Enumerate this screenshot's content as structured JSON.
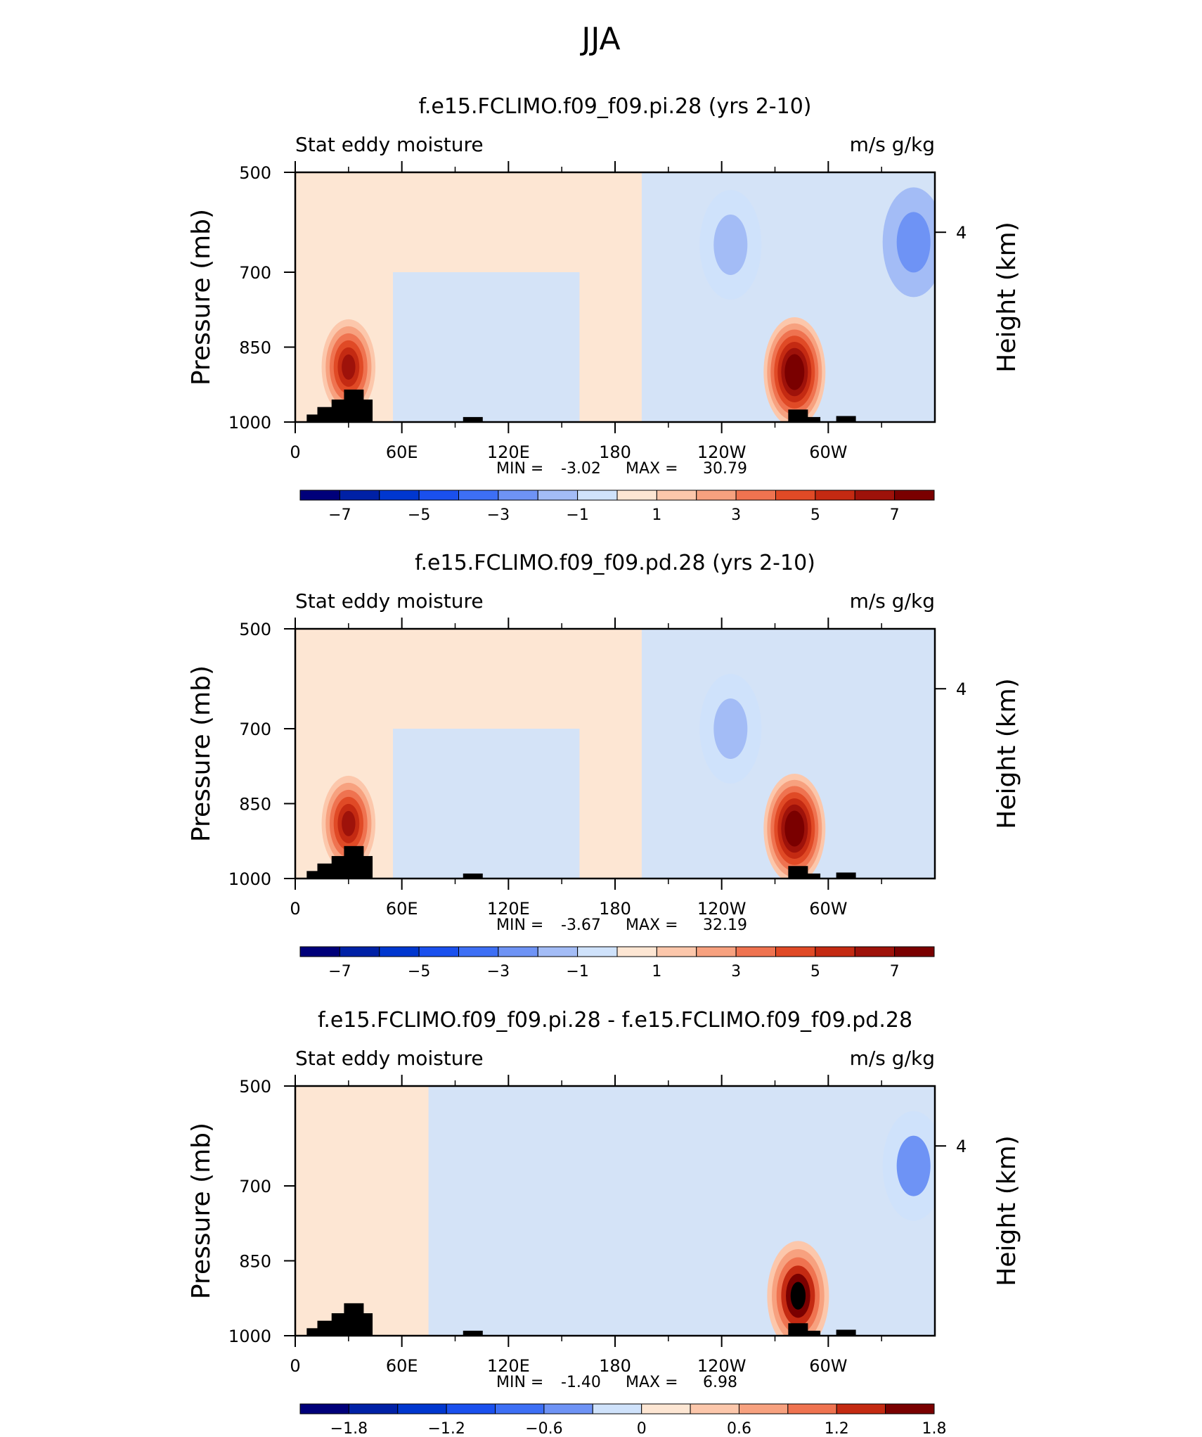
{
  "page_title": "JJA",
  "chart_data": [
    {
      "type": "heatmap",
      "title": "f.e15.FCLIMO.f09_f09.pi.28 (yrs 2-10)",
      "left_label": "Stat eddy moisture",
      "right_label": "m/s g/kg",
      "ylabel": "Pressure (mb)",
      "y2label": "Height (km)",
      "x_ticks": [
        {
          "lon": 0,
          "label": "0"
        },
        {
          "lon": 60,
          "label": "60E"
        },
        {
          "lon": 120,
          "label": "120E"
        },
        {
          "lon": 180,
          "label": "180"
        },
        {
          "lon": 240,
          "label": "120W"
        },
        {
          "lon": 300,
          "label": "60W"
        }
      ],
      "y_ticks": [
        {
          "p": 500,
          "label": "500"
        },
        {
          "p": 700,
          "label": "700"
        },
        {
          "p": 850,
          "label": "850"
        },
        {
          "p": 1000,
          "label": "1000"
        }
      ],
      "y2_ticks": [
        {
          "p": 620,
          "label": "4"
        }
      ],
      "xlim": [
        0,
        360
      ],
      "ylim": [
        1000,
        500
      ],
      "stats": {
        "min_label": "MIN =",
        "min": "-3.02",
        "max_label": "MAX =",
        "max": "30.79"
      },
      "colorbar": {
        "levels": [
          -7,
          -6,
          -5,
          -4,
          -3,
          -2,
          -1,
          0,
          1,
          2,
          3,
          4,
          5,
          6,
          7
        ],
        "labels": [
          "-7",
          "-5",
          "-3",
          "-1",
          "1",
          "3",
          "5",
          "7"
        ],
        "colors": [
          "#00007a",
          "#0021a6",
          "#0037cf",
          "#1a50ee",
          "#3d6ff5",
          "#6e93f5",
          "#a3bcf6",
          "#cfe2fb",
          "#fde6d3",
          "#fcc7ab",
          "#f7a17f",
          "#ef7350",
          "#e04a26",
          "#c42a12",
          "#9e120a",
          "#7a0000"
        ]
      },
      "features": [
        {
          "name": "positive-core-east-africa",
          "lon": 30,
          "p": 890,
          "value": 6.5
        },
        {
          "name": "positive-core-andes",
          "lon": 281,
          "p": 900,
          "value": 8.0
        },
        {
          "name": "negative-core-east-pacific",
          "lon": 245,
          "p": 645,
          "value": -2.0
        },
        {
          "name": "negative-core-west-atlantic",
          "lon": 348,
          "p": 640,
          "value": -2.2
        }
      ]
    },
    {
      "type": "heatmap",
      "title": "f.e15.FCLIMO.f09_f09.pd.28 (yrs 2-10)",
      "left_label": "Stat eddy moisture",
      "right_label": "m/s g/kg",
      "ylabel": "Pressure (mb)",
      "y2label": "Height (km)",
      "x_ticks": [
        {
          "lon": 0,
          "label": "0"
        },
        {
          "lon": 60,
          "label": "60E"
        },
        {
          "lon": 120,
          "label": "120E"
        },
        {
          "lon": 180,
          "label": "180"
        },
        {
          "lon": 240,
          "label": "120W"
        },
        {
          "lon": 300,
          "label": "60W"
        }
      ],
      "y_ticks": [
        {
          "p": 500,
          "label": "500"
        },
        {
          "p": 700,
          "label": "700"
        },
        {
          "p": 850,
          "label": "850"
        },
        {
          "p": 1000,
          "label": "1000"
        }
      ],
      "y2_ticks": [
        {
          "p": 620,
          "label": "4"
        }
      ],
      "xlim": [
        0,
        360
      ],
      "ylim": [
        1000,
        500
      ],
      "stats": {
        "min_label": "MIN =",
        "min": "-3.67",
        "max_label": "MAX =",
        "max": "32.19"
      },
      "colorbar": {
        "levels": [
          -7,
          -6,
          -5,
          -4,
          -3,
          -2,
          -1,
          0,
          1,
          2,
          3,
          4,
          5,
          6,
          7
        ],
        "labels": [
          "-7",
          "-5",
          "-3",
          "-1",
          "1",
          "3",
          "5",
          "7"
        ],
        "colors": [
          "#00007a",
          "#0021a6",
          "#0037cf",
          "#1a50ee",
          "#3d6ff5",
          "#6e93f5",
          "#a3bcf6",
          "#cfe2fb",
          "#fde6d3",
          "#fcc7ab",
          "#f7a17f",
          "#ef7350",
          "#e04a26",
          "#c42a12",
          "#9e120a",
          "#7a0000"
        ]
      },
      "features": [
        {
          "name": "positive-core-east-africa",
          "lon": 30,
          "p": 890,
          "value": 6.8
        },
        {
          "name": "positive-core-andes",
          "lon": 281,
          "p": 900,
          "value": 8.0
        },
        {
          "name": "negative-core-east-pacific",
          "lon": 245,
          "p": 700,
          "value": -2.0
        }
      ]
    },
    {
      "type": "heatmap",
      "title": "f.e15.FCLIMO.f09_f09.pi.28 - f.e15.FCLIMO.f09_f09.pd.28",
      "left_label": "Stat eddy moisture",
      "right_label": "m/s g/kg",
      "ylabel": "Pressure (mb)",
      "y2label": "Height (km)",
      "x_ticks": [
        {
          "lon": 0,
          "label": "0"
        },
        {
          "lon": 60,
          "label": "60E"
        },
        {
          "lon": 120,
          "label": "120E"
        },
        {
          "lon": 180,
          "label": "180"
        },
        {
          "lon": 240,
          "label": "120W"
        },
        {
          "lon": 300,
          "label": "60W"
        }
      ],
      "y_ticks": [
        {
          "p": 500,
          "label": "500"
        },
        {
          "p": 700,
          "label": "700"
        },
        {
          "p": 850,
          "label": "850"
        },
        {
          "p": 1000,
          "label": "1000"
        }
      ],
      "y2_ticks": [
        {
          "p": 620,
          "label": "4"
        }
      ],
      "xlim": [
        0,
        360
      ],
      "ylim": [
        1000,
        500
      ],
      "stats": {
        "min_label": "MIN =",
        "min": "-1.40",
        "max_label": "MAX =",
        "max": "6.98"
      },
      "colorbar": {
        "levels": [
          -1.8,
          -1.5,
          -1.2,
          -0.9,
          -0.6,
          -0.3,
          0,
          0.3,
          0.6,
          0.9,
          1.2,
          1.5,
          1.8
        ],
        "labels": [
          "-1.8",
          "-1.2",
          "-0.6",
          "0",
          "0.6",
          "1.2",
          "1.8"
        ],
        "colors": [
          "#00007a",
          "#0021a6",
          "#0037cf",
          "#1a50ee",
          "#3d6ff5",
          "#6e93f5",
          "#cfe2fb",
          "#fde6d3",
          "#fcc7ab",
          "#f7a17f",
          "#ef7350",
          "#c42a12",
          "#7a0000"
        ]
      },
      "features": [
        {
          "name": "negative-core-west-atlantic",
          "lon": 348,
          "p": 660,
          "value": -0.6
        },
        {
          "name": "positive-core-andes",
          "lon": 283,
          "p": 920,
          "value": 1.9
        }
      ]
    }
  ]
}
